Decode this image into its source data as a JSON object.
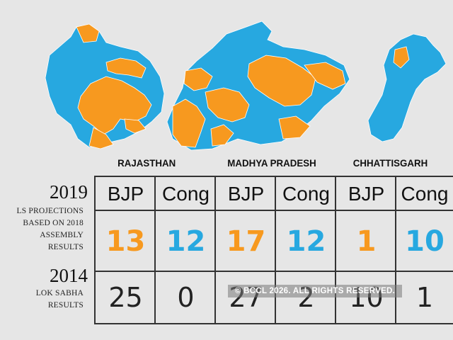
{
  "colors": {
    "bjp": "#f7991f",
    "cong": "#27a8e0",
    "background": "#e6e6e6"
  },
  "states": [
    {
      "name": "RAJASTHAN"
    },
    {
      "name": "MADHYA PRADESH"
    },
    {
      "name": "CHHATTISGARH"
    }
  ],
  "rows": {
    "projection": {
      "year": "2019",
      "desc": [
        "LS PROJECTIONS",
        "BASED ON 2018",
        "ASSEMBLY",
        "RESULTS"
      ]
    },
    "result": {
      "year": "2014",
      "desc": [
        "LOK SABHA",
        "RESULTS"
      ]
    }
  },
  "table": {
    "headers": [
      "BJP",
      "Cong",
      "BJP",
      "Cong",
      "BJP",
      "Cong"
    ],
    "projections": [
      "13",
      "12",
      "17",
      "12",
      "1",
      "10"
    ],
    "results": [
      "25",
      "0",
      "27",
      "2",
      "10",
      "1"
    ]
  },
  "watermark": "© BCCL 2026. ALL RIGHTS RESERVED."
}
